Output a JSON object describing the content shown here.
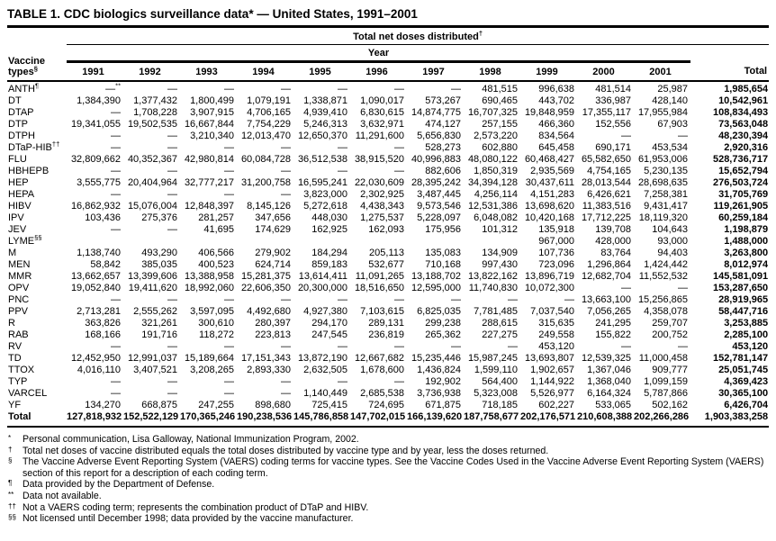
{
  "title": "TABLE 1. CDC biologics surveillance data* — United States, 1991–2001",
  "table": {
    "group_header": "Total net doses distributed",
    "group_header_sup": "†",
    "year_label": "Year",
    "row_header": {
      "line1": "Vaccine",
      "line2": "types",
      "sup": "§"
    },
    "years": [
      "1991",
      "1992",
      "1993",
      "1994",
      "1995",
      "1996",
      "1997",
      "1998",
      "1999",
      "2000",
      "2001"
    ],
    "total_col_header": "Total",
    "rows": [
      {
        "name": "ANTH",
        "sup": "¶",
        "values": [
          "—**",
          "—",
          "—",
          "—",
          "—",
          "—",
          "—",
          "481,515",
          "996,638",
          "481,514",
          "25,987"
        ],
        "total": "1,985,654"
      },
      {
        "name": "DT",
        "sup": "",
        "values": [
          "1,384,390",
          "1,377,432",
          "1,800,499",
          "1,079,191",
          "1,338,871",
          "1,090,017",
          "573,267",
          "690,465",
          "443,702",
          "336,987",
          "428,140"
        ],
        "total": "10,542,961"
      },
      {
        "name": "DTAP",
        "sup": "",
        "values": [
          "—",
          "1,708,228",
          "3,907,915",
          "4,706,165",
          "4,939,410",
          "6,830,615",
          "14,874,775",
          "16,707,325",
          "19,848,959",
          "17,355,117",
          "17,955,984"
        ],
        "total": "108,834,493"
      },
      {
        "name": "DTP",
        "sup": "",
        "values": [
          "19,341,055",
          "19,502,535",
          "16,667,844",
          "7,754,229",
          "5,246,313",
          "3,632,971",
          "474,127",
          "257,155",
          "466,360",
          "152,556",
          "67,903"
        ],
        "total": "73,563,048"
      },
      {
        "name": "DTPH",
        "sup": "",
        "values": [
          "—",
          "—",
          "3,210,340",
          "12,013,470",
          "12,650,370",
          "11,291,600",
          "5,656,830",
          "2,573,220",
          "834,564",
          "—",
          "—"
        ],
        "total": "48,230,394"
      },
      {
        "name": "DTaP-HIB",
        "sup": "††",
        "values": [
          "—",
          "—",
          "—",
          "—",
          "—",
          "—",
          "528,273",
          "602,880",
          "645,458",
          "690,171",
          "453,534"
        ],
        "total": "2,920,316"
      },
      {
        "name": "FLU",
        "sup": "",
        "values": [
          "32,809,662",
          "40,352,367",
          "42,980,814",
          "60,084,728",
          "36,512,538",
          "38,915,520",
          "40,996,883",
          "48,080,122",
          "60,468,427",
          "65,582,650",
          "61,953,006"
        ],
        "total": "528,736,717"
      },
      {
        "name": "HBHEPB",
        "sup": "",
        "values": [
          "—",
          "—",
          "—",
          "—",
          "—",
          "—",
          "882,606",
          "1,850,319",
          "2,935,569",
          "4,754,165",
          "5,230,135"
        ],
        "total": "15,652,794"
      },
      {
        "name": "HEP",
        "sup": "",
        "values": [
          "3,555,775",
          "20,404,964",
          "32,777,217",
          "31,200,758",
          "16,595,241",
          "22,030,609",
          "28,395,242",
          "34,394,128",
          "30,437,611",
          "28,013,544",
          "28,698,635"
        ],
        "total": "276,503,724"
      },
      {
        "name": "HEPA",
        "sup": "",
        "values": [
          "—",
          "—",
          "—",
          "—",
          "3,823,000",
          "2,302,925",
          "3,487,445",
          "4,256,114",
          "4,151,283",
          "6,426,621",
          "7,258,381"
        ],
        "total": "31,705,769"
      },
      {
        "name": "HIBV",
        "sup": "",
        "values": [
          "16,862,932",
          "15,076,004",
          "12,848,397",
          "8,145,126",
          "5,272,618",
          "4,438,343",
          "9,573,546",
          "12,531,386",
          "13,698,620",
          "11,383,516",
          "9,431,417"
        ],
        "total": "119,261,905"
      },
      {
        "name": "IPV",
        "sup": "",
        "values": [
          "103,436",
          "275,376",
          "281,257",
          "347,656",
          "448,030",
          "1,275,537",
          "5,228,097",
          "6,048,082",
          "10,420,168",
          "17,712,225",
          "18,119,320"
        ],
        "total": "60,259,184"
      },
      {
        "name": "JEV",
        "sup": "",
        "values": [
          "—",
          "—",
          "41,695",
          "174,629",
          "162,925",
          "162,093",
          "175,956",
          "101,312",
          "135,918",
          "139,708",
          "104,643"
        ],
        "total": "1,198,879"
      },
      {
        "name": "LYME",
        "sup": "§§",
        "values": [
          "",
          "",
          "",
          "",
          "",
          "",
          "",
          "",
          "967,000",
          "428,000",
          "93,000"
        ],
        "total": "1,488,000"
      },
      {
        "name": "M",
        "sup": "",
        "values": [
          "1,138,740",
          "493,290",
          "406,566",
          "279,902",
          "184,294",
          "205,113",
          "135,083",
          "134,909",
          "107,736",
          "83,764",
          "94,403"
        ],
        "total": "3,263,800"
      },
      {
        "name": "MEN",
        "sup": "",
        "values": [
          "58,842",
          "385,035",
          "400,523",
          "624,714",
          "859,183",
          "532,677",
          "710,168",
          "997,430",
          "723,096",
          "1,296,864",
          "1,424,442"
        ],
        "total": "8,012,974"
      },
      {
        "name": "MMR",
        "sup": "",
        "values": [
          "13,662,657",
          "13,399,606",
          "13,388,958",
          "15,281,375",
          "13,614,411",
          "11,091,265",
          "13,188,702",
          "13,822,162",
          "13,896,719",
          "12,682,704",
          "11,552,532"
        ],
        "total": "145,581,091"
      },
      {
        "name": "OPV",
        "sup": "",
        "values": [
          "19,052,840",
          "19,411,620",
          "18,992,060",
          "22,606,350",
          "20,300,000",
          "18,516,650",
          "12,595,000",
          "11,740,830",
          "10,072,300",
          "—",
          "—"
        ],
        "total": "153,287,650"
      },
      {
        "name": "PNC",
        "sup": "",
        "values": [
          "—",
          "—",
          "—",
          "—",
          "—",
          "—",
          "—",
          "—",
          "—",
          "13,663,100",
          "15,256,865"
        ],
        "total": "28,919,965"
      },
      {
        "name": "PPV",
        "sup": "",
        "values": [
          "2,713,281",
          "2,555,262",
          "3,597,095",
          "4,492,680",
          "4,927,380",
          "7,103,615",
          "6,825,035",
          "7,781,485",
          "7,037,540",
          "7,056,265",
          "4,358,078"
        ],
        "total": "58,447,716"
      },
      {
        "name": "R",
        "sup": "",
        "values": [
          "363,826",
          "321,261",
          "300,610",
          "280,397",
          "294,170",
          "289,131",
          "299,238",
          "288,615",
          "315,635",
          "241,295",
          "259,707"
        ],
        "total": "3,253,885"
      },
      {
        "name": "RAB",
        "sup": "",
        "values": [
          "168,166",
          "191,716",
          "118,272",
          "223,813",
          "247,545",
          "236,819",
          "265,362",
          "227,275",
          "249,558",
          "155,822",
          "200,752"
        ],
        "total": "2,285,100"
      },
      {
        "name": "RV",
        "sup": "",
        "values": [
          "—",
          "—",
          "—",
          "—",
          "—",
          "—",
          "—",
          "—",
          "453,120",
          "—",
          "—"
        ],
        "total": "453,120"
      },
      {
        "name": "TD",
        "sup": "",
        "values": [
          "12,452,950",
          "12,991,037",
          "15,189,664",
          "17,151,343",
          "13,872,190",
          "12,667,682",
          "15,235,446",
          "15,987,245",
          "13,693,807",
          "12,539,325",
          "11,000,458"
        ],
        "total": "152,781,147"
      },
      {
        "name": "TTOX",
        "sup": "",
        "values": [
          "4,016,110",
          "3,407,521",
          "3,208,265",
          "2,893,330",
          "2,632,505",
          "1,678,600",
          "1,436,824",
          "1,599,110",
          "1,902,657",
          "1,367,046",
          "909,777"
        ],
        "total": "25,051,745"
      },
      {
        "name": "TYP",
        "sup": "",
        "values": [
          "—",
          "—",
          "—",
          "—",
          "—",
          "—",
          "192,902",
          "564,400",
          "1,144,922",
          "1,368,040",
          "1,099,159"
        ],
        "total": "4,369,423"
      },
      {
        "name": "VARCEL",
        "sup": "",
        "values": [
          "—",
          "—",
          "—",
          "—",
          "1,140,449",
          "2,685,538",
          "3,736,938",
          "5,323,008",
          "5,526,977",
          "6,164,324",
          "5,787,866"
        ],
        "total": "30,365,100"
      },
      {
        "name": "YF",
        "sup": "",
        "values": [
          "134,270",
          "668,875",
          "247,255",
          "898,680",
          "725,415",
          "724,695",
          "671,875",
          "718,185",
          "602,227",
          "533,065",
          "502,162"
        ],
        "total": "6,426,704"
      }
    ],
    "total_row": {
      "name": "Total",
      "values": [
        "127,818,932",
        "152,522,129",
        "170,365,246",
        "190,238,536",
        "145,786,858",
        "147,702,015",
        "166,139,620",
        "187,758,677",
        "202,176,571",
        "210,608,388",
        "202,266,286"
      ],
      "total": "1,903,383,258"
    }
  },
  "footnotes": [
    {
      "sym": "*",
      "text": "Personal communication, Lisa Galloway, National Immunization Program, 2002."
    },
    {
      "sym": "†",
      "text": "Total net doses of vaccine distributed equals the total doses distributed by vaccine type and by year, less the doses returned."
    },
    {
      "sym": "§",
      "text": "The Vaccine Adverse Event Reporting System (VAERS) coding terms for vaccine types. See the Vaccine Codes Used in the Vaccine Adverse Event Reporting System (VAERS) section of this report for a description of each coding term."
    },
    {
      "sym": "¶",
      "text": "Data provided by the Department of Defense."
    },
    {
      "sym": "**",
      "text": "Data not available."
    },
    {
      "sym": "††",
      "text": "Not a VAERS coding term; represents the combination product of DTaP and HIBV."
    },
    {
      "sym": "§§",
      "text": "Not licensed until December 1998; data provided by the vaccine manufacturer."
    }
  ]
}
